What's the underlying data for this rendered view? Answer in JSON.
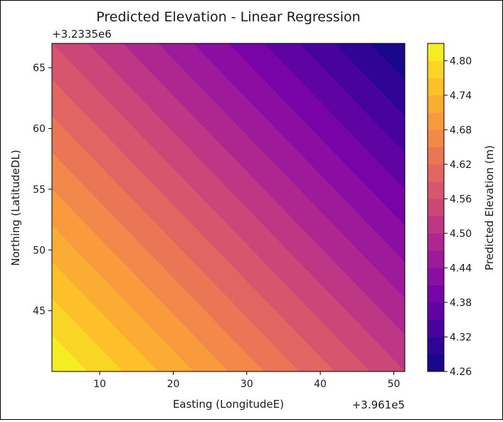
{
  "chart_data": {
    "type": "filled-contour",
    "title": "Predicted Elevation - Linear Regression",
    "xlabel": "Easting (LongitudeE)",
    "ylabel": "Northing (LatitudeDL)",
    "x_offset_label": "+3.961e5",
    "y_offset_label": "+3.2335e6",
    "x_offset": 396100,
    "y_offset": 3233500,
    "xlim": [
      3.5,
      51.5
    ],
    "ylim": [
      40.0,
      67.0
    ],
    "x_ticks": [
      10,
      20,
      30,
      40,
      50
    ],
    "y_ticks": [
      45,
      50,
      55,
      60,
      65
    ],
    "colormap": "plasma",
    "colorbar": {
      "label": "Predicted Elevation (m)",
      "range": [
        4.26,
        4.83
      ],
      "levels": [
        4.26,
        4.29,
        4.32,
        4.35,
        4.38,
        4.41,
        4.44,
        4.47,
        4.5,
        4.53,
        4.56,
        4.59,
        4.62,
        4.65,
        4.68,
        4.71,
        4.74,
        4.77,
        4.8,
        4.83
      ],
      "tick_labels": [
        "4.26",
        "4.32",
        "4.38",
        "4.44",
        "4.50",
        "4.56",
        "4.62",
        "4.68",
        "4.74",
        "4.80"
      ]
    },
    "surface": {
      "corner_values": {
        "bottom_left": 4.83,
        "bottom_right": 4.53,
        "top_left": 4.56,
        "top_right": 4.26
      }
    }
  }
}
